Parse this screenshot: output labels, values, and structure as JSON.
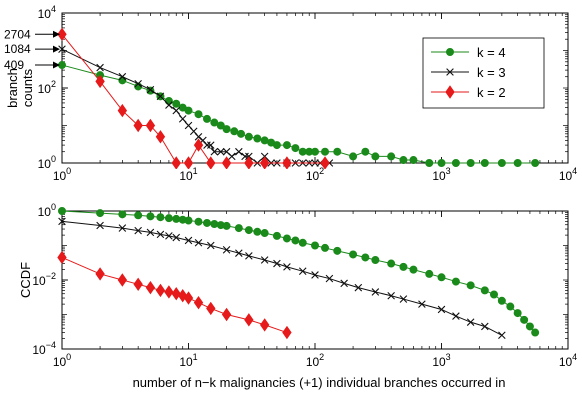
{
  "chart_data": [
    {
      "type": "scatter",
      "title": "",
      "xlabel": "",
      "ylabel": "branch\ncounts",
      "xscale": "log",
      "yscale": "log",
      "xlim": [
        1,
        10000
      ],
      "ylim": [
        1,
        10000
      ],
      "x_ticks": [
        1,
        10,
        100,
        1000,
        10000
      ],
      "y_ticks": [
        1,
        100,
        10000
      ],
      "x_tick_labels": [
        {
          "base": "10",
          "exp": "0"
        },
        {
          "base": "10",
          "exp": "1"
        },
        {
          "base": "10",
          "exp": "2"
        },
        {
          "base": "10",
          "exp": "3"
        },
        {
          "base": "10",
          "exp": "4"
        }
      ],
      "y_tick_labels": [
        {
          "base": "10",
          "exp": "0"
        },
        {
          "base": "10",
          "exp": "2"
        },
        {
          "base": "10",
          "exp": "4"
        }
      ],
      "grid": false,
      "legend": {
        "placement": "top-right",
        "entries": [
          "k = 4",
          "k = 3",
          "k = 2"
        ]
      },
      "annotations": [
        {
          "label": "2704",
          "x": 1,
          "y": 2704
        },
        {
          "label": "1084",
          "x": 1,
          "y": 1084
        },
        {
          "label": "409",
          "x": 1,
          "y": 409
        }
      ],
      "series": [
        {
          "name": "k = 4",
          "color": "#1a8a1a",
          "marker": "circle",
          "x": [
            1,
            2,
            3,
            4,
            5,
            6,
            7,
            8,
            9,
            10,
            12,
            14,
            16,
            18,
            20,
            23,
            26,
            30,
            35,
            40,
            45,
            50,
            60,
            70,
            80,
            90,
            100,
            120,
            150,
            200,
            250,
            300,
            400,
            500,
            600,
            800,
            1000,
            1300,
            1700,
            2200,
            3000,
            4000,
            5500
          ],
          "y": [
            409,
            220,
            160,
            110,
            85,
            60,
            45,
            38,
            30,
            25,
            20,
            15,
            12,
            10,
            8,
            7,
            6,
            5,
            4.5,
            4,
            3.5,
            3,
            3,
            2.5,
            2,
            2,
            2,
            2,
            2,
            1.5,
            2,
            1.5,
            1.5,
            1.2,
            1.2,
            1,
            1,
            1,
            1,
            1,
            1,
            1,
            1
          ]
        },
        {
          "name": "k = 3",
          "color": "#111111",
          "marker": "x",
          "x": [
            1,
            2,
            3,
            4,
            5,
            6,
            7,
            8,
            9,
            10,
            11,
            12,
            13,
            14,
            15,
            16,
            18,
            20,
            22,
            25,
            28,
            30,
            35,
            40,
            45,
            50,
            60,
            70,
            80,
            90,
            100,
            110,
            130
          ],
          "y": [
            1084,
            350,
            200,
            130,
            90,
            60,
            35,
            25,
            15,
            10,
            7,
            5,
            4,
            3,
            3,
            2,
            2,
            2,
            1.5,
            2,
            1.5,
            1.5,
            1,
            1.5,
            1,
            1,
            1,
            1,
            1,
            1,
            1,
            1,
            1
          ]
        },
        {
          "name": "k = 2",
          "color": "#e61a1a",
          "marker": "diamond",
          "x": [
            1,
            2,
            3,
            4,
            5,
            6,
            8,
            10,
            12,
            15,
            20,
            30,
            40,
            60,
            120
          ],
          "y": [
            2704,
            150,
            25,
            10,
            10,
            5,
            1,
            1,
            3,
            1,
            1,
            1,
            1,
            1,
            1
          ]
        }
      ]
    },
    {
      "type": "line",
      "title": "",
      "xlabel": "number of n−k malignancies (+1) individual branches occurred in",
      "ylabel": "CCDF",
      "xscale": "log",
      "yscale": "log",
      "xlim": [
        1,
        10000
      ],
      "ylim": [
        0.0001,
        1
      ],
      "x_ticks": [
        1,
        10,
        100,
        1000,
        10000
      ],
      "y_ticks": [
        0.0001,
        0.01,
        1
      ],
      "x_tick_labels": [
        {
          "base": "10",
          "exp": "0"
        },
        {
          "base": "10",
          "exp": "1"
        },
        {
          "base": "10",
          "exp": "2"
        },
        {
          "base": "10",
          "exp": "3"
        },
        {
          "base": "10",
          "exp": "4"
        }
      ],
      "y_tick_labels": [
        {
          "base": "10",
          "exp": "−4"
        },
        {
          "base": "10",
          "exp": "−2"
        },
        {
          "base": "10",
          "exp": "0"
        }
      ],
      "grid": false,
      "series": [
        {
          "name": "k = 4",
          "color": "#1a8a1a",
          "marker": "circle",
          "x": [
            1,
            2,
            3,
            4,
            5,
            6,
            7,
            8,
            9,
            10,
            12,
            14,
            16,
            18,
            20,
            25,
            30,
            35,
            40,
            50,
            60,
            70,
            80,
            100,
            120,
            150,
            200,
            250,
            300,
            400,
            500,
            600,
            800,
            1000,
            1300,
            1700,
            2200,
            2600,
            3000,
            3500,
            4000,
            4500,
            5000,
            5500
          ],
          "y": [
            1,
            0.87,
            0.8,
            0.75,
            0.7,
            0.66,
            0.62,
            0.59,
            0.56,
            0.53,
            0.49,
            0.45,
            0.42,
            0.39,
            0.37,
            0.32,
            0.28,
            0.25,
            0.23,
            0.19,
            0.16,
            0.14,
            0.12,
            0.1,
            0.085,
            0.07,
            0.055,
            0.045,
            0.038,
            0.03,
            0.024,
            0.02,
            0.015,
            0.012,
            0.009,
            0.007,
            0.005,
            0.0038,
            0.0025,
            0.0017,
            0.0011,
            0.0007,
            0.00045,
            0.0003
          ]
        },
        {
          "name": "k = 3",
          "color": "#111111",
          "marker": "x",
          "x": [
            1,
            2,
            3,
            4,
            5,
            6,
            7,
            8,
            10,
            12,
            15,
            20,
            25,
            30,
            40,
            50,
            60,
            80,
            100,
            130,
            170,
            220,
            300,
            400,
            500,
            700,
            1000,
            1300,
            1700,
            2200,
            3000
          ],
          "y": [
            0.5,
            0.38,
            0.32,
            0.27,
            0.24,
            0.21,
            0.19,
            0.17,
            0.14,
            0.12,
            0.1,
            0.075,
            0.06,
            0.05,
            0.038,
            0.03,
            0.024,
            0.018,
            0.014,
            0.011,
            0.008,
            0.006,
            0.0045,
            0.0035,
            0.0028,
            0.002,
            0.0014,
            0.0009,
            0.0006,
            0.00045,
            0.00025
          ]
        },
        {
          "name": "k = 2",
          "color": "#e61a1a",
          "marker": "diamond",
          "x": [
            1,
            2,
            3,
            4,
            5,
            6,
            7,
            8,
            9,
            10,
            12,
            15,
            20,
            30,
            40,
            60
          ],
          "y": [
            0.045,
            0.015,
            0.01,
            0.0075,
            0.006,
            0.005,
            0.0045,
            0.004,
            0.0035,
            0.003,
            0.0022,
            0.0015,
            0.001,
            0.0007,
            0.0005,
            0.0003
          ]
        }
      ]
    }
  ]
}
